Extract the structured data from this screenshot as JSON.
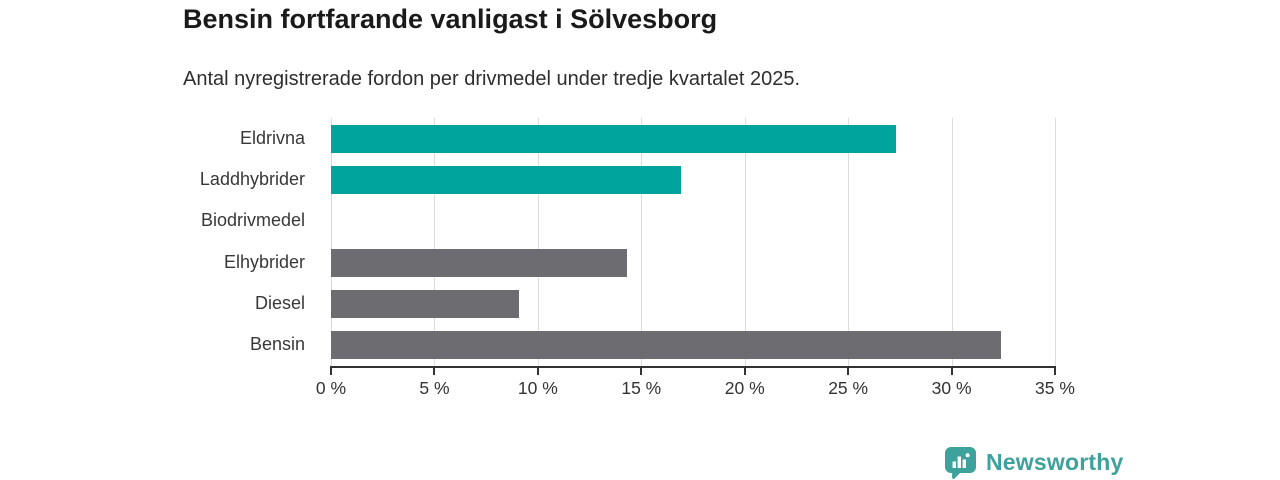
{
  "header": {
    "title": "Bensin fortfarande vanligast i Sölvesborg",
    "subtitle": "Antal nyregistrerade fordon per drivmedel under tredje kvartalet 2025."
  },
  "chart_data": {
    "type": "bar",
    "orientation": "horizontal",
    "title": "Bensin fortfarande vanligast i Sölvesborg",
    "subtitle": "Antal nyregistrerade fordon per drivmedel under tredje kvartalet 2025.",
    "categories": [
      "Eldrivna",
      "Laddhybrider",
      "Biodrivmedel",
      "Elhybrider",
      "Diesel",
      "Bensin"
    ],
    "values": [
      27.3,
      16.9,
      0,
      14.3,
      9.1,
      32.4
    ],
    "unit": "%",
    "bar_colors": [
      "#00a49c",
      "#00a49c",
      "#6c6c71",
      "#6c6c71",
      "#6c6c71",
      "#6c6c71"
    ],
    "xlim": [
      0,
      35
    ],
    "x_ticks": [
      0,
      5,
      10,
      15,
      20,
      25,
      30,
      35
    ],
    "x_tick_labels": [
      "0 %",
      "5 %",
      "10 %",
      "15 %",
      "20 %",
      "25 %",
      "30 %",
      "35 %"
    ],
    "grid": true,
    "legend": false
  },
  "branding": {
    "logo_text": "Newsworthy",
    "brand_color": "#3ea29c"
  },
  "colors": {
    "bar_teal": "#00a49c",
    "bar_gray": "#6c6c71",
    "gridline": "#dcdcdc",
    "axis": "#333333",
    "title_text": "#1a1a1a",
    "body_text": "#333333"
  }
}
